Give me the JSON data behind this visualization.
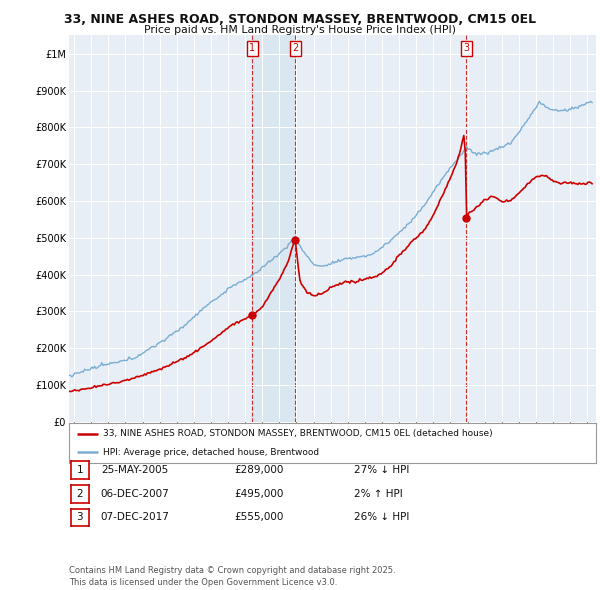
{
  "title_line1": "33, NINE ASHES ROAD, STONDON MASSEY, BRENTWOOD, CM15 0EL",
  "title_line2": "Price paid vs. HM Land Registry's House Price Index (HPI)",
  "legend_label_red": "33, NINE ASHES ROAD, STONDON MASSEY, BRENTWOOD, CM15 0EL (detached house)",
  "legend_label_blue": "HPI: Average price, detached house, Brentwood",
  "transactions": [
    {
      "num": 1,
      "date": "25-MAY-2005",
      "price": 289000,
      "pct": "27%",
      "dir": "↓",
      "x_year": 2005.4
    },
    {
      "num": 2,
      "date": "06-DEC-2007",
      "price": 495000,
      "pct": "2%",
      "dir": "↑",
      "x_year": 2007.92
    },
    {
      "num": 3,
      "date": "07-DEC-2017",
      "price": 555000,
      "pct": "26%",
      "dir": "↓",
      "x_year": 2017.92
    }
  ],
  "footnote": "Contains HM Land Registry data © Crown copyright and database right 2025.\nThis data is licensed under the Open Government Licence v3.0.",
  "ylim": [
    0,
    1050000
  ],
  "xlim_start": 1994.7,
  "xlim_end": 2025.5,
  "background_color": "#ffffff",
  "plot_bg_color": "#e8eef5",
  "grid_color": "#ffffff",
  "red_color": "#cc0000",
  "blue_color": "#7aadd4",
  "highlight_color": "#dae6f0"
}
